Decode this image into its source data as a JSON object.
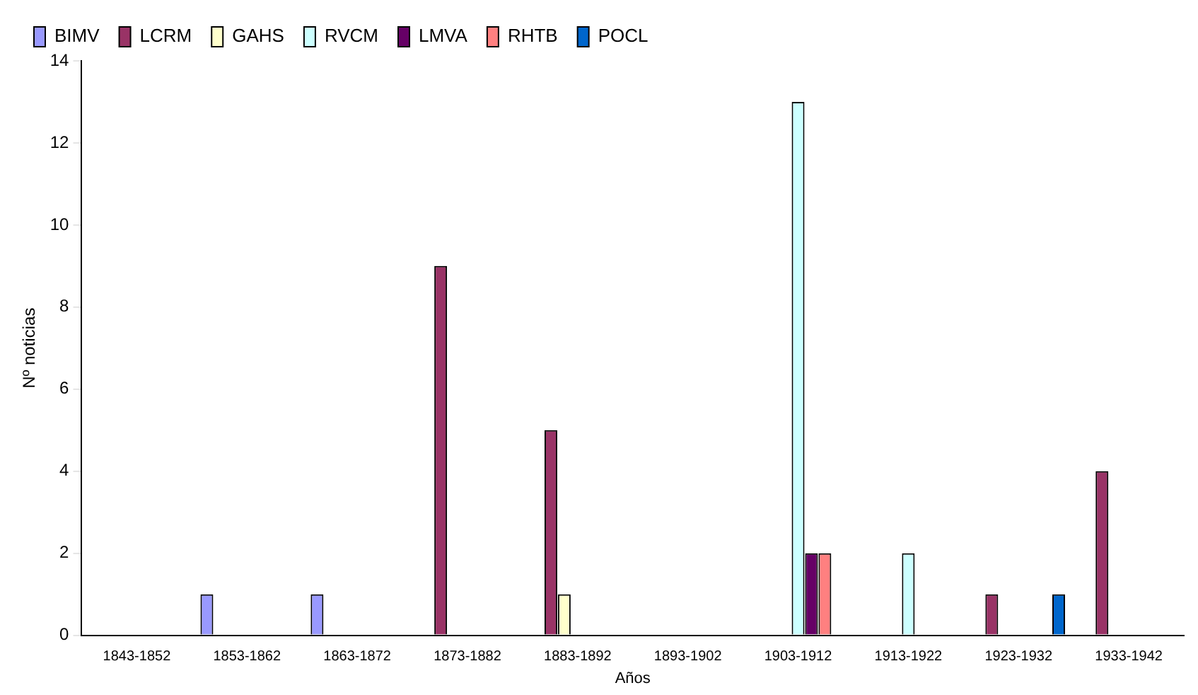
{
  "chart_data": {
    "type": "bar",
    "xlabel": "Años",
    "ylabel": "Nº noticias",
    "categories": [
      "1843-1852",
      "1853-1862",
      "1863-1872",
      "1873-1882",
      "1883-1892",
      "1893-1902",
      "1903-1912",
      "1913-1922",
      "1923-1932",
      "1933-1942"
    ],
    "series": [
      {
        "name": "BIMV",
        "color": "#9999ff",
        "values": [
          0,
          1,
          1,
          0,
          0,
          0,
          0,
          0,
          0,
          0
        ]
      },
      {
        "name": "LCRM",
        "color": "#993366",
        "values": [
          0,
          0,
          0,
          9,
          5,
          0,
          0,
          0,
          1,
          4
        ]
      },
      {
        "name": "GAHS",
        "color": "#ffffcc",
        "values": [
          0,
          0,
          0,
          0,
          1,
          0,
          0,
          0,
          0,
          0
        ]
      },
      {
        "name": "RVCM",
        "color": "#ccffff",
        "values": [
          0,
          0,
          0,
          0,
          0,
          0,
          13,
          2,
          0,
          0
        ]
      },
      {
        "name": "LMVA",
        "color": "#660066",
        "values": [
          0,
          0,
          0,
          0,
          0,
          0,
          2,
          0,
          0,
          0
        ]
      },
      {
        "name": "RHTB",
        "color": "#ff8080",
        "values": [
          0,
          0,
          0,
          0,
          0,
          0,
          2,
          0,
          0,
          0
        ]
      },
      {
        "name": "POCL",
        "color": "#0066cc",
        "values": [
          0,
          0,
          0,
          0,
          0,
          0,
          0,
          0,
          1,
          0
        ]
      }
    ],
    "ylim": [
      0,
      14
    ],
    "yticks": [
      0,
      2,
      4,
      6,
      8,
      10,
      12,
      14
    ],
    "grid": false,
    "legend": "top"
  }
}
